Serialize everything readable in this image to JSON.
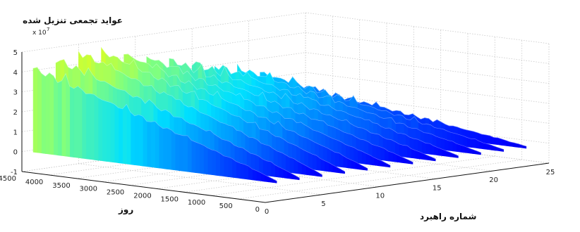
{
  "chart_data": {
    "type": "surface",
    "title": "",
    "zlabel": "عواید تجمعی تنزیل شده",
    "xlabel": "روز",
    "ylabel": "شماره راهبرد",
    "z_multiplier": "x 10",
    "z_multiplier_exponent": "7",
    "xlim": [
      0,
      4500
    ],
    "ylim": [
      0,
      25
    ],
    "zlim": [
      -1,
      5
    ],
    "x_ticks": [
      "0",
      "500",
      "1000",
      "1500",
      "2000",
      "2500",
      "3000",
      "3500",
      "4000",
      "4500"
    ],
    "y_ticks": [
      "0",
      "5",
      "10",
      "15",
      "20",
      "25"
    ],
    "z_ticks": [
      "-1",
      "0",
      "1",
      "2",
      "3",
      "4",
      "5"
    ],
    "grid": true,
    "colormap": [
      "#00008f",
      "#0000ff",
      "#0070ff",
      "#00e0ff",
      "#7fff80",
      "#ffff00"
    ],
    "series": [
      {
        "strategy": 1,
        "z_at_4500": 4.1
      },
      {
        "strategy": 3,
        "z_at_4500": 4.4
      },
      {
        "strategy": 5,
        "z_at_4500": 4.6
      },
      {
        "strategy": 7,
        "z_at_4500": 4.5
      },
      {
        "strategy": 9,
        "z_at_4500": 4.2
      },
      {
        "strategy": 11,
        "z_at_4500": 3.9
      },
      {
        "strategy": 13,
        "z_at_4500": 3.6
      },
      {
        "strategy": 15,
        "z_at_4500": 3.3
      },
      {
        "strategy": 17,
        "z_at_4500": 3.0
      },
      {
        "strategy": 19,
        "z_at_4500": 2.7
      },
      {
        "strategy": 21,
        "z_at_4500": 2.3
      },
      {
        "strategy": 23,
        "z_at_4500": 1.7
      }
    ]
  }
}
